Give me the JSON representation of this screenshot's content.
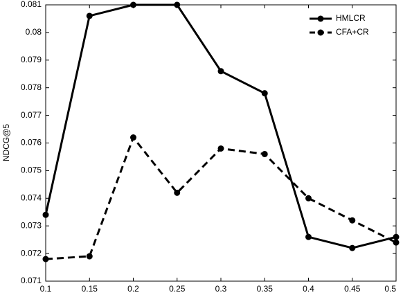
{
  "chart_data": {
    "type": "line",
    "ylabel": "NDCG@5",
    "x": [
      0.1,
      0.15,
      0.2,
      0.25,
      0.3,
      0.35,
      0.4,
      0.45,
      0.5
    ],
    "series": [
      {
        "name": "HMLCR",
        "color": "#000000",
        "line_style": "solid",
        "values": [
          0.0734,
          0.0806,
          0.081,
          0.081,
          0.0786,
          0.0778,
          0.0726,
          0.0722,
          0.0726
        ]
      },
      {
        "name": "CFA+CR",
        "color": "#000000",
        "line_style": "dashed",
        "values": [
          0.0718,
          0.0719,
          0.0762,
          0.0742,
          0.0758,
          0.0756,
          0.074,
          0.0732,
          0.0724
        ]
      }
    ],
    "xlim": [
      0.1,
      0.5
    ],
    "xticks": [
      0.1,
      0.15,
      0.2,
      0.25,
      0.3,
      0.35,
      0.4,
      0.45,
      0.5
    ],
    "ylim": [
      0.071,
      0.081
    ],
    "yticks": [
      0.071,
      0.072,
      0.073,
      0.074,
      0.075,
      0.076,
      0.077,
      0.078,
      0.079,
      0.08,
      0.081
    ],
    "grid": false,
    "legend": "top-right"
  }
}
